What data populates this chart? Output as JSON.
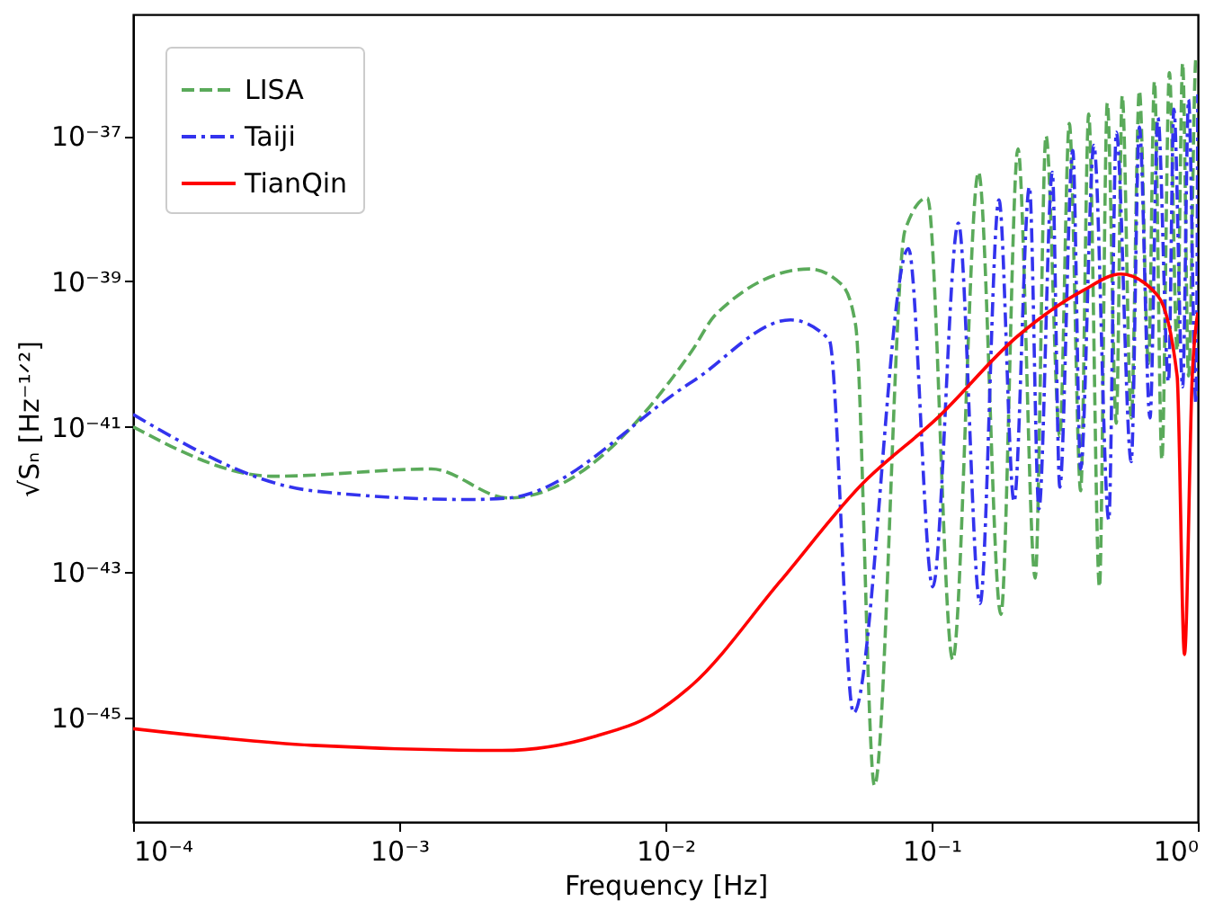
{
  "chart_data": {
    "type": "line",
    "xlabel": "Frequency [Hz]",
    "ylabel": "√Sₙ [Hz⁻¹ᐟ²]",
    "log": "xy",
    "grid": false,
    "legend": "top left",
    "marker": "none",
    "xlim": [
      0.0001,
      1
    ],
    "ylim": [
      3.7e-47,
      4.68e-36
    ],
    "xticks": [
      {
        "value": 0.0001,
        "label": "10⁻⁴"
      },
      {
        "value": 0.001,
        "label": "10⁻³"
      },
      {
        "value": 0.01,
        "label": "10⁻²"
      },
      {
        "value": 0.1,
        "label": "10⁻¹"
      },
      {
        "value": 1,
        "label": "10⁰"
      }
    ],
    "yticks": [
      {
        "value": 1e-45,
        "label": "10⁻⁴⁵"
      },
      {
        "value": 1e-43,
        "label": "10⁻⁴³"
      },
      {
        "value": 1e-41,
        "label": "10⁻⁴¹"
      },
      {
        "value": 1e-39,
        "label": "10⁻³⁹"
      },
      {
        "value": 1e-37,
        "label": "10⁻³⁷"
      }
    ],
    "series": [
      {
        "name": "LISA",
        "color": "#5aaa5a",
        "line_style": "dashed",
        "x": [
          0.0001,
          0.000339,
          0.00132,
          0.00257,
          0.0126,
          0.0155,
          0.0347,
          0.0461,
          0.0518,
          0.061,
          0.0794,
          0.0964,
          0.12,
          0.15,
          0.182,
          0.211,
          0.245,
          0.269,
          0.303,
          0.329,
          0.363,
          0.389,
          0.427,
          0.457,
          0.494,
          0.52,
          0.562,
          0.603,
          0.653,
          0.687,
          0.733,
          0.782,
          0.836,
          0.877,
          0.923,
          0.984,
          1.0
        ],
        "values": [
          1e-41,
          2.09e-42,
          2.63e-42,
          1.05e-42,
          1.12e-40,
          3.55e-40,
          1.48e-39,
          8.91e-40,
          2.51e-40,
          1.17e-46,
          5.01e-39,
          1.41e-38,
          6.31e-45,
          3.16e-38,
          2.63e-44,
          6.61e-38,
          8.32e-44,
          1e-37,
          7.41e-42,
          1.48e-37,
          1.32e-42,
          2e-37,
          6.31e-44,
          2.82e-37,
          1.12e-41,
          3.55e-37,
          1.32e-41,
          4.17e-37,
          7.41e-41,
          5.62e-37,
          3.55e-42,
          7.41e-37,
          1.12e-40,
          1e-36,
          5.01e-41,
          1.17e-36,
          1.26e-36
        ]
      },
      {
        "name": "Taiji",
        "color": "#3333ee",
        "line_style": "dashdot",
        "x": [
          0.0001,
          0.000473,
          0.00184,
          0.00257,
          0.0126,
          0.0295,
          0.0412,
          0.0509,
          0.0818,
          0.101,
          0.126,
          0.152,
          0.179,
          0.204,
          0.233,
          0.253,
          0.284,
          0.303,
          0.339,
          0.363,
          0.407,
          0.463,
          0.494,
          0.562,
          0.603,
          0.661,
          0.708,
          0.776,
          0.813,
          0.877,
          0.923,
          0.984,
          1.0
        ],
        "values": [
          1.48e-41,
          1.32e-42,
          1e-42,
          1.05e-42,
          4.17e-41,
          2.95e-40,
          1.58e-40,
          1.17e-45,
          2.82e-39,
          6.31e-44,
          6.31e-39,
          3.72e-44,
          1.32e-38,
          9.33e-43,
          2e-38,
          7.41e-43,
          3.16e-38,
          1.48e-42,
          6.31e-38,
          2.63e-42,
          7.41e-38,
          5.25e-43,
          1.12e-37,
          3.31e-42,
          1.32e-37,
          1.32e-41,
          1.78e-37,
          4.17e-41,
          2.34e-37,
          3.55e-41,
          3.16e-37,
          2.09e-41,
          3.72e-37
        ]
      },
      {
        "name": "TianQin",
        "color": "#ff0000",
        "line_style": "solid",
        "x": [
          0.0001,
          0.000473,
          0.00243,
          0.0055,
          0.009,
          0.0126,
          0.0269,
          0.0543,
          0.105,
          0.211,
          0.369,
          0.513,
          0.708,
          0.836,
          0.891,
          0.953,
          1.0
        ],
        "values": [
          7.08e-46,
          4.17e-46,
          3.55e-46,
          5.62e-46,
          1.12e-45,
          2.82e-45,
          7.41e-44,
          1.58e-42,
          1.32e-41,
          1.78e-40,
          7.41e-40,
          1.26e-39,
          6.31e-40,
          5.01e-41,
          7.41e-45,
          5.01e-41,
          3.72e-40
        ]
      }
    ]
  }
}
